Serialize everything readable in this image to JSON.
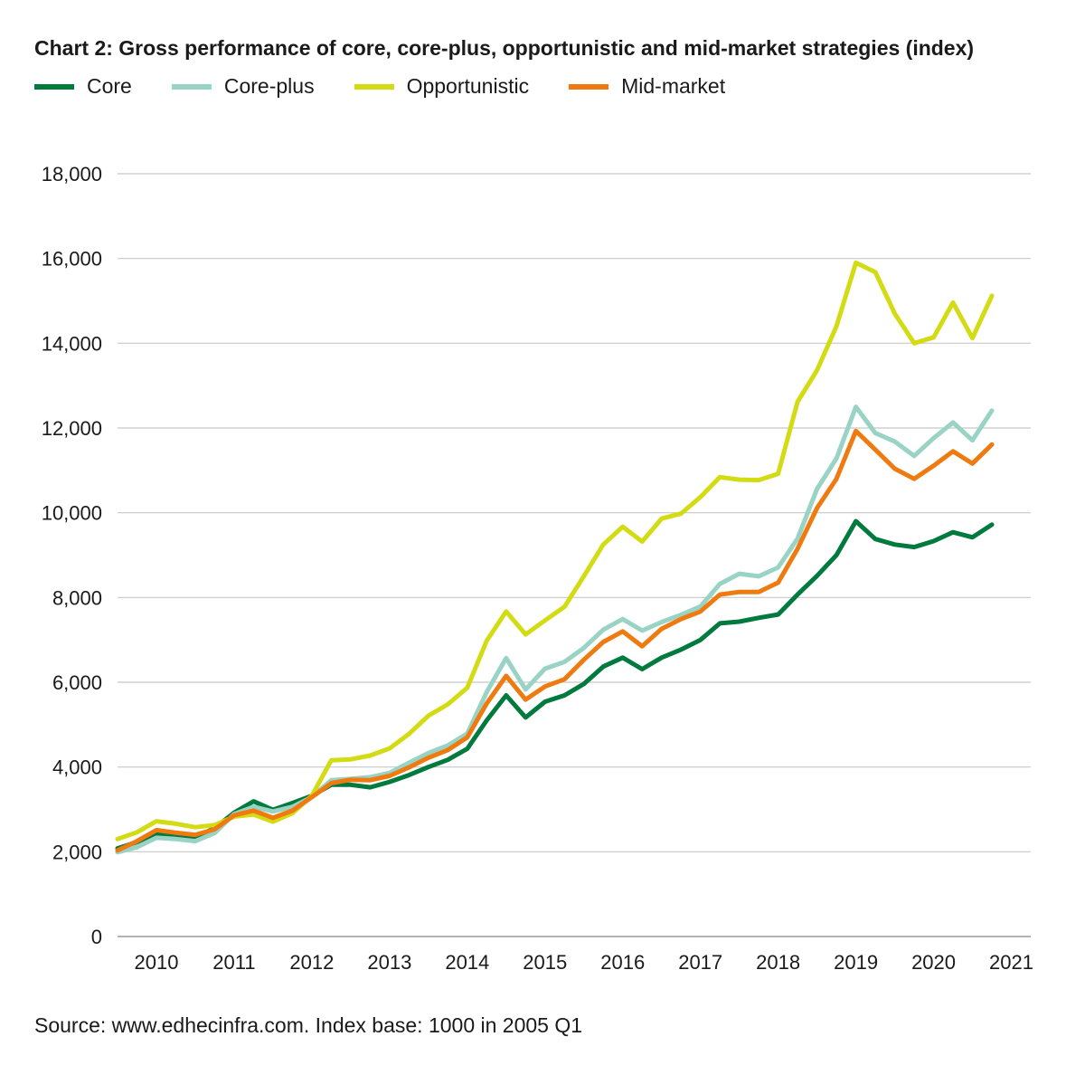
{
  "chart_data": {
    "type": "line",
    "title": "Chart 2: Gross performance of core, core-plus, opportunistic and mid-market strategies (index)",
    "xlabel": "",
    "ylabel": "",
    "ylim": [
      0,
      18000
    ],
    "yticks": [
      0,
      2000,
      4000,
      6000,
      8000,
      10000,
      12000,
      14000,
      16000,
      18000
    ],
    "ytick_labels": [
      "0",
      "2,000",
      "4,000",
      "6,000",
      "8,000",
      "10,000",
      "12,000",
      "14,000",
      "16,000",
      "18,000"
    ],
    "xlim": [
      2009.5,
      2021.25
    ],
    "xticks": [
      2010,
      2011,
      2012,
      2013,
      2014,
      2015,
      2016,
      2017,
      2018,
      2019,
      2020,
      2021
    ],
    "xtick_labels": [
      "2010",
      "2011",
      "2012",
      "2013",
      "2014",
      "2015",
      "2016",
      "2017",
      "2018",
      "2019",
      "2020",
      "2021"
    ],
    "grid": true,
    "legend_position": "top-left",
    "x": [
      2009.5,
      2009.75,
      2010.0,
      2010.25,
      2010.5,
      2010.75,
      2011.0,
      2011.25,
      2011.5,
      2011.75,
      2012.0,
      2012.25,
      2012.5,
      2012.75,
      2013.0,
      2013.25,
      2013.5,
      2013.75,
      2014.0,
      2014.25,
      2014.5,
      2014.75,
      2015.0,
      2015.25,
      2015.5,
      2015.75,
      2016.0,
      2016.25,
      2016.5,
      2016.75,
      2017.0,
      2017.25,
      2017.5,
      2017.75,
      2018.0,
      2018.25,
      2018.5,
      2018.75,
      2019.0,
      2019.25,
      2019.5,
      2019.75,
      2020.0,
      2020.25,
      2020.5,
      2020.75
    ],
    "series": [
      {
        "name": "Core",
        "color": "#007a3d",
        "values": [
          2080,
          2230,
          2430,
          2380,
          2340,
          2560,
          2920,
          3190,
          2990,
          3150,
          3320,
          3580,
          3580,
          3520,
          3650,
          3810,
          4000,
          4170,
          4430,
          5100,
          5690,
          5170,
          5540,
          5690,
          5960,
          6370,
          6580,
          6310,
          6580,
          6770,
          7000,
          7390,
          7430,
          7520,
          7600,
          8070,
          8510,
          9000,
          9800,
          9380,
          9250,
          9190,
          9330,
          9540,
          9420,
          9720
        ]
      },
      {
        "name": "Core-plus",
        "color": "#98d3c5",
        "values": [
          1990,
          2110,
          2330,
          2300,
          2250,
          2440,
          2890,
          3060,
          2950,
          3060,
          3290,
          3690,
          3720,
          3760,
          3860,
          4100,
          4330,
          4510,
          4790,
          5770,
          6570,
          5830,
          6320,
          6480,
          6810,
          7240,
          7490,
          7220,
          7420,
          7590,
          7790,
          8320,
          8560,
          8500,
          8710,
          9390,
          10560,
          11280,
          12500,
          11880,
          11680,
          11340,
          11760,
          12130,
          11710,
          12410
        ]
      },
      {
        "name": "Opportunistic",
        "color": "#d3dc13",
        "values": [
          2300,
          2460,
          2720,
          2660,
          2580,
          2630,
          2830,
          2880,
          2710,
          2910,
          3320,
          4160,
          4180,
          4270,
          4440,
          4780,
          5210,
          5480,
          5870,
          6980,
          7670,
          7130,
          7460,
          7780,
          8500,
          9250,
          9670,
          9320,
          9860,
          9980,
          10370,
          10840,
          10780,
          10770,
          10920,
          12620,
          13360,
          14400,
          15900,
          15680,
          14700,
          14000,
          14140,
          14960,
          14120,
          15120
        ]
      },
      {
        "name": "Mid-market",
        "color": "#ef7b10",
        "values": [
          2030,
          2250,
          2510,
          2450,
          2400,
          2530,
          2860,
          2970,
          2800,
          2970,
          3290,
          3620,
          3700,
          3690,
          3790,
          3990,
          4220,
          4400,
          4700,
          5500,
          6150,
          5590,
          5900,
          6070,
          6530,
          6950,
          7200,
          6850,
          7260,
          7490,
          7670,
          8070,
          8130,
          8130,
          8350,
          9150,
          10110,
          10800,
          11930,
          11490,
          11040,
          10800,
          11110,
          11450,
          11160,
          11610
        ]
      }
    ],
    "source": "Source: www.edhecinfra.com. Index base: 1000 in 2005 Q1"
  }
}
